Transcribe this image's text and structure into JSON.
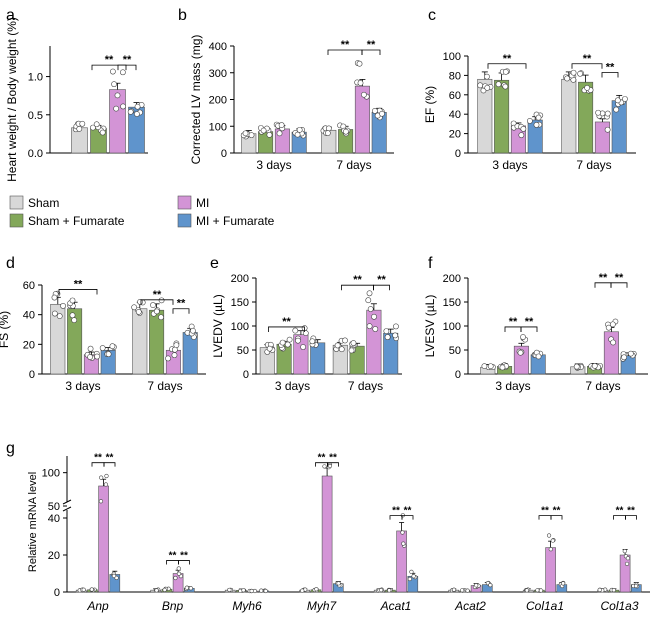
{
  "colors": {
    "sham": "#d8d8d8",
    "sham_fumarate": "#83a85a",
    "mi": "#d394d6",
    "mi_fumarate": "#5f94cc"
  },
  "legend": [
    "Sham",
    "Sham + Fumarate",
    "MI",
    "MI + Fumarate"
  ],
  "chart_data": [
    {
      "panel": "a",
      "type": "bar",
      "ylabel": "Heart weight / Body weight (%)",
      "ylim": [
        0,
        1.4
      ],
      "yticks": [
        0.0,
        0.5,
        1.0
      ],
      "ytick_labels": [
        "0.0",
        "0.5",
        "1.0"
      ],
      "categories": [
        ""
      ],
      "series": [
        {
          "name": "Sham",
          "values": [
            0.33
          ]
        },
        {
          "name": "Sham + Fumarate",
          "values": [
            0.32
          ]
        },
        {
          "name": "MI",
          "values": [
            0.83
          ]
        },
        {
          "name": "MI + Fumarate",
          "values": [
            0.6
          ]
        }
      ],
      "significance": [
        "**",
        "**"
      ]
    },
    {
      "panel": "b",
      "type": "bar",
      "ylabel": "Corrected LV mass (mg)",
      "ylim": [
        0,
        400
      ],
      "yticks": [
        0,
        100,
        200,
        300,
        400
      ],
      "ytick_labels": [
        "0",
        "100",
        "200",
        "300",
        "400"
      ],
      "categories": [
        "3 days",
        "7 days"
      ],
      "series": [
        {
          "name": "Sham",
          "values": [
            72,
            85
          ]
        },
        {
          "name": "Sham + Fumarate",
          "values": [
            80,
            88
          ]
        },
        {
          "name": "MI",
          "values": [
            90,
            250
          ]
        },
        {
          "name": "MI + Fumarate",
          "values": [
            78,
            152
          ]
        }
      ],
      "significance": [
        "**",
        "**"
      ]
    },
    {
      "panel": "c",
      "type": "bar",
      "ylabel": "EF (%)",
      "ylim": [
        0,
        100
      ],
      "yticks": [
        0,
        20,
        40,
        60,
        80,
        100
      ],
      "ytick_labels": [
        "0",
        "20",
        "40",
        "60",
        "80",
        "100"
      ],
      "categories": [
        "3 days",
        "7 days"
      ],
      "series": [
        {
          "name": "Sham",
          "values": [
            76,
            76
          ]
        },
        {
          "name": "Sham + Fumarate",
          "values": [
            75,
            73
          ]
        },
        {
          "name": "MI",
          "values": [
            28,
            32
          ]
        },
        {
          "name": "MI + Fumarate",
          "values": [
            34,
            54
          ]
        }
      ],
      "significance": [
        "**",
        "**",
        "**"
      ]
    },
    {
      "panel": "d",
      "type": "bar",
      "ylabel": "FS (%)",
      "ylim": [
        0,
        60
      ],
      "yticks": [
        0,
        20,
        40,
        60
      ],
      "ytick_labels": [
        "0",
        "20",
        "40",
        "60"
      ],
      "categories": [
        "3 days",
        "7 days"
      ],
      "series": [
        {
          "name": "Sham",
          "values": [
            47,
            44
          ]
        },
        {
          "name": "Sham + Fumarate",
          "values": [
            44,
            43
          ]
        },
        {
          "name": "MI",
          "values": [
            13,
            16
          ]
        },
        {
          "name": "MI + Fumarate",
          "values": [
            16,
            28
          ]
        }
      ],
      "significance": [
        "**",
        "**",
        "**"
      ]
    },
    {
      "panel": "e",
      "type": "bar",
      "ylabel": "LVEDV (µL)",
      "ylim": [
        0,
        200
      ],
      "yticks": [
        0,
        50,
        100,
        150,
        200
      ],
      "ytick_labels": [
        "0",
        "50",
        "100",
        "150",
        "200"
      ],
      "categories": [
        "3 days",
        "7 days"
      ],
      "series": [
        {
          "name": "Sham",
          "values": [
            55,
            60
          ]
        },
        {
          "name": "Sham + Fumarate",
          "values": [
            62,
            58
          ]
        },
        {
          "name": "MI",
          "values": [
            82,
            133
          ]
        },
        {
          "name": "MI + Fumarate",
          "values": [
            65,
            85
          ]
        }
      ],
      "significance": [
        "**",
        "**",
        "**"
      ]
    },
    {
      "panel": "f",
      "type": "bar",
      "ylabel": "LVESV (µL)",
      "ylim": [
        0,
        200
      ],
      "yticks": [
        0,
        50,
        100,
        150,
        200
      ],
      "ytick_labels": [
        "0",
        "50",
        "100",
        "150",
        "200"
      ],
      "categories": [
        "3 days",
        "7 days"
      ],
      "series": [
        {
          "name": "Sham",
          "values": [
            14,
            15
          ]
        },
        {
          "name": "Sham + Fumarate",
          "values": [
            16,
            16
          ]
        },
        {
          "name": "MI",
          "values": [
            58,
            88
          ]
        },
        {
          "name": "MI + Fumarate",
          "values": [
            40,
            38
          ]
        }
      ],
      "significance": [
        "**",
        "**",
        "**",
        "**"
      ]
    },
    {
      "panel": "g",
      "type": "bar",
      "ylabel": "Relative mRNA level",
      "scale": "broken",
      "yticks": [
        0,
        20,
        40,
        50,
        100
      ],
      "ytick_labels": [
        "0",
        "20",
        "40",
        "50",
        "100"
      ],
      "categories": [
        "Anp",
        "Bnp",
        "Myh6",
        "Myh7",
        "Acat1",
        "Acat2",
        "Col1a1",
        "Col1a3"
      ],
      "series": [
        {
          "name": "Sham",
          "values": [
            1,
            1,
            1,
            1,
            1,
            1,
            1,
            1
          ]
        },
        {
          "name": "Sham + Fumarate",
          "values": [
            1.2,
            1.5,
            0.9,
            1.2,
            1,
            0.8,
            1,
            1
          ]
        },
        {
          "name": "MI",
          "values": [
            80,
            10,
            0.5,
            95,
            33,
            3.5,
            24,
            20
          ]
        },
        {
          "name": "MI + Fumarate",
          "values": [
            9.5,
            2,
            0.6,
            4.5,
            8.5,
            4,
            4,
            4
          ]
        }
      ],
      "significance": [
        "**",
        "**",
        "**",
        "**",
        "**",
        "**",
        "**",
        "**",
        "**",
        "**",
        "**",
        "**"
      ]
    }
  ]
}
